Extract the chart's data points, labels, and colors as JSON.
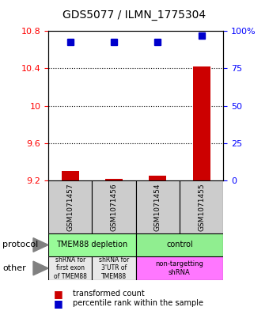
{
  "title": "GDS5077 / ILMN_1775304",
  "samples": [
    "GSM1071457",
    "GSM1071456",
    "GSM1071454",
    "GSM1071455"
  ],
  "red_values": [
    9.3,
    9.22,
    9.25,
    10.42
  ],
  "blue_values": [
    93,
    93,
    93,
    97
  ],
  "ylim_left": [
    9.2,
    10.8
  ],
  "ylim_right": [
    0,
    100
  ],
  "yticks_left": [
    9.2,
    9.6,
    10.0,
    10.4,
    10.8
  ],
  "yticks_right": [
    0,
    25,
    50,
    75,
    100
  ],
  "ytick_labels_left": [
    "9.2",
    "9.6",
    "10",
    "10.4",
    "10.8"
  ],
  "ytick_labels_right": [
    "0",
    "25",
    "50",
    "75",
    "100%"
  ],
  "dotted_lines": [
    10.4,
    10.0,
    9.6
  ],
  "protocol_labels": [
    "TMEM88 depletion",
    "control"
  ],
  "protocol_colors": [
    "#90EE90",
    "#90EE90"
  ],
  "other_labels": [
    "shRNA for\nfirst exon\nof TMEM88",
    "shRNA for\n3'UTR of\nTMEM88",
    "non-targetting\nshRNA"
  ],
  "other_colors": [
    "#DDDDDD",
    "#DDDDDD",
    "#FF80FF"
  ],
  "legend_red": "transformed count",
  "legend_blue": "percentile rank within the sample",
  "bar_color": "#CC0000",
  "dot_color": "#0000CC",
  "bar_width": 0.4,
  "protocol_colors_exact": [
    "#98FB98",
    "#90EE90"
  ],
  "left_protocol_color": "#98FB98",
  "right_protocol_color": "#90EE90",
  "left_other1_color": "#E8E8E8",
  "left_other2_color": "#E8E8E8",
  "right_other_color": "#FF77FF"
}
